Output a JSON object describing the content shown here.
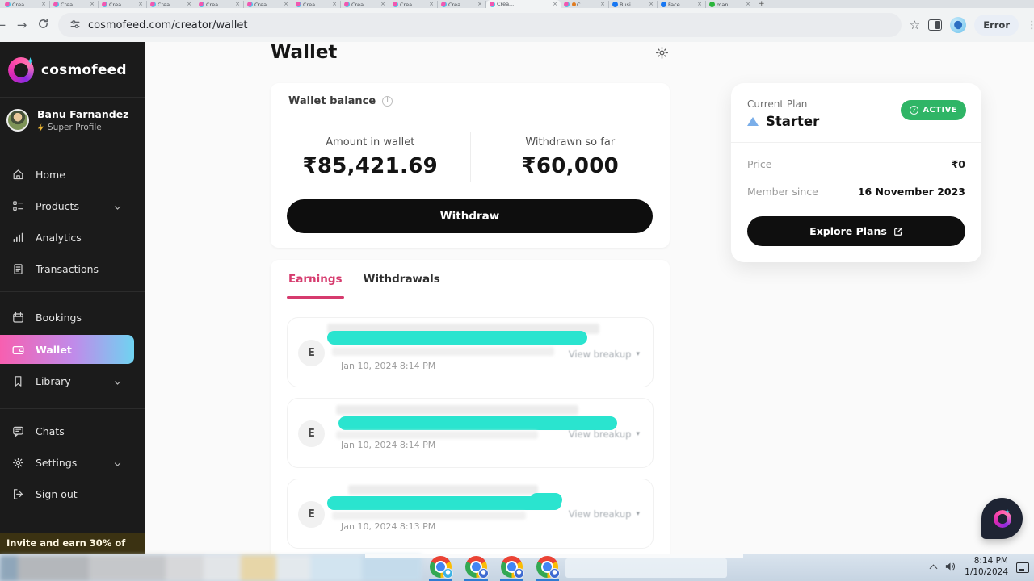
{
  "browser": {
    "tabs": [
      {
        "label": "Crea...",
        "icon": "cosmofeed"
      },
      {
        "label": "Crea...",
        "icon": "cosmofeed"
      },
      {
        "label": "Crea...",
        "icon": "cosmofeed"
      },
      {
        "label": "Crea...",
        "icon": "cosmofeed"
      },
      {
        "label": "Crea...",
        "icon": "cosmofeed"
      },
      {
        "label": "Crea...",
        "icon": "cosmofeed"
      },
      {
        "label": "Crea...",
        "icon": "cosmofeed"
      },
      {
        "label": "Crea...",
        "icon": "cosmofeed"
      },
      {
        "label": "Crea...",
        "icon": "cosmofeed"
      },
      {
        "label": "Crea...",
        "icon": "cosmofeed"
      },
      {
        "label": "Crea...",
        "icon": "cosmofeed",
        "active": true
      },
      {
        "label": "C...",
        "icon": "cosmofeed-doc"
      },
      {
        "label": "Busi...",
        "icon": "facebook"
      },
      {
        "label": "Face...",
        "icon": "facebook"
      },
      {
        "label": "man...",
        "icon": "green"
      }
    ],
    "new_tab": "+",
    "url": "cosmofeed.com/creator/wallet",
    "error_badge": "Error",
    "kebab": "⋮"
  },
  "sidebar": {
    "brand": "cosmofeed",
    "profile": {
      "name": "Banu Farnandez",
      "badge": "Super Profile"
    },
    "nav": [
      {
        "label": "Home"
      },
      {
        "label": "Products",
        "chevron": true
      },
      {
        "label": "Analytics"
      },
      {
        "label": "Transactions"
      },
      {
        "label": "Bookings"
      },
      {
        "label": "Wallet",
        "active": true
      },
      {
        "label": "Library",
        "chevron": true
      },
      {
        "label": "Chats"
      },
      {
        "label": "Settings",
        "chevron": true
      },
      {
        "label": "Sign out"
      }
    ],
    "invite_banner": "Invite and earn 30% of"
  },
  "main": {
    "title": "Wallet",
    "balance_card": {
      "title": "Wallet balance",
      "columns": [
        {
          "label": "Amount in wallet",
          "value": "₹85,421.69"
        },
        {
          "label": "Withdrawn so far",
          "value": "₹60,000"
        }
      ],
      "withdraw_button": "Withdraw"
    },
    "activity": {
      "tabs": [
        {
          "label": "Earnings",
          "active": true
        },
        {
          "label": "Withdrawals"
        }
      ],
      "items": [
        {
          "avatar": "E",
          "timestamp": "Jan 10, 2024 8:14 PM",
          "action": "View breakup",
          "caret": "▾"
        },
        {
          "avatar": "E",
          "timestamp": "Jan 10, 2024 8:14 PM",
          "action": "View breakup",
          "caret": "▾"
        },
        {
          "avatar": "E",
          "timestamp": "Jan 10, 2024 8:13 PM",
          "action": "View breakup",
          "caret": "▾"
        }
      ]
    },
    "plan_card": {
      "label": "Current Plan",
      "plan_name": "Starter",
      "status_badge": "ACTIVE",
      "rows": [
        {
          "label": "Price",
          "value": "₹0"
        },
        {
          "label": "Member since",
          "value": "16 November 2023"
        }
      ],
      "explore_button": "Explore Plans"
    }
  },
  "taskbar": {
    "time": "8:14 PM",
    "date": "1/10/2024"
  },
  "colors": {
    "accent_pink": "#d63b6e",
    "redaction_cyan": "#2ae4cf",
    "active_green": "#2fb566",
    "sidebar_bg": "#1b1b1b",
    "wallet_gradient_start": "#f75fb0",
    "wallet_gradient_end": "#6fd3f1",
    "button_black": "#0e0e0e"
  }
}
